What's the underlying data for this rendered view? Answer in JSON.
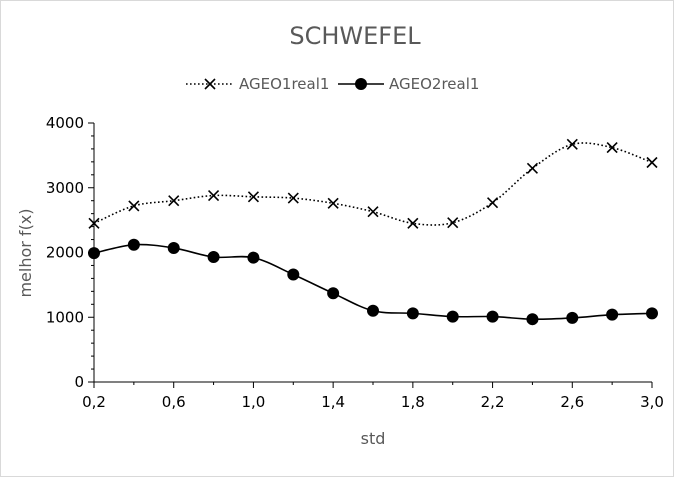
{
  "chart_data": {
    "type": "line",
    "title": "SCHWEFEL",
    "xlabel": "std",
    "ylabel": "melhor f(x)",
    "xlim": [
      0.2,
      3.0
    ],
    "ylim": [
      0,
      4000
    ],
    "x_ticks": [
      "0,2",
      "0,6",
      "1,0",
      "1,4",
      "1,8",
      "2,2",
      "2,6",
      "3,0"
    ],
    "y_ticks": [
      "0",
      "1000",
      "2000",
      "3000",
      "4000"
    ],
    "legend_position": "top",
    "grid": false,
    "x": [
      0.2,
      0.4,
      0.6,
      0.8,
      1.0,
      1.2,
      1.4,
      1.6,
      1.8,
      2.0,
      2.2,
      2.4,
      2.6,
      2.8,
      3.0
    ],
    "series": [
      {
        "name": "AGEO1real1",
        "style": "dotted",
        "marker": "x",
        "color": "#000000",
        "values": [
          2450,
          2720,
          2800,
          2880,
          2860,
          2840,
          2760,
          2630,
          2450,
          2460,
          2770,
          3300,
          3670,
          3620,
          3390
        ]
      },
      {
        "name": "AGEO2real1",
        "style": "solid",
        "marker": "circle",
        "color": "#000000",
        "values": [
          1990,
          2120,
          2070,
          1930,
          1920,
          1660,
          1370,
          1100,
          1060,
          1010,
          1010,
          970,
          990,
          1040,
          1060
        ]
      }
    ]
  }
}
